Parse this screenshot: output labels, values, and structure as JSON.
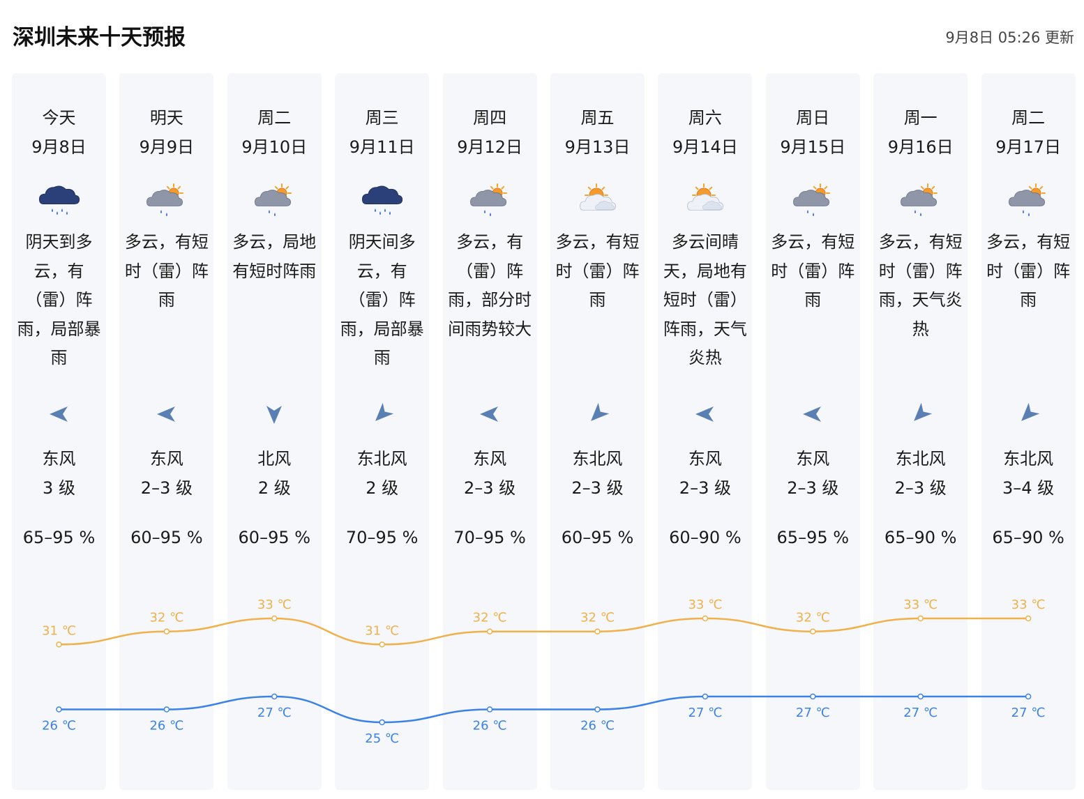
{
  "title": "深圳未来十天预报",
  "update_text": "9月8日 05:26 更新",
  "days": [
    {
      "day": "今天",
      "date": "9月8日",
      "icon": "rain-cloud-icon",
      "desc": "阴天到多云，有（雷）阵雨，局部暴雨",
      "wind_dir": "东风",
      "wind_level": "3 级",
      "humidity": "65–95 %",
      "high": "31 ℃",
      "low": "26 ℃",
      "high_v": 31,
      "low_v": 26,
      "arrow_deg": 180
    },
    {
      "day": "明天",
      "date": "9月9日",
      "icon": "partly-cloudy-rain-icon",
      "desc": "多云，有短时（雷）阵雨",
      "wind_dir": "东风",
      "wind_level": "2–3 级",
      "humidity": "60–95 %",
      "high": "32 ℃",
      "low": "26 ℃",
      "high_v": 32,
      "low_v": 26,
      "arrow_deg": 180
    },
    {
      "day": "周二",
      "date": "9月10日",
      "icon": "partly-cloudy-rain-icon",
      "desc": "多云，局地有短时阵雨",
      "wind_dir": "北风",
      "wind_level": "2 级",
      "humidity": "60–95 %",
      "high": "33 ℃",
      "low": "27 ℃",
      "high_v": 33,
      "low_v": 27,
      "arrow_deg": 90
    },
    {
      "day": "周三",
      "date": "9月11日",
      "icon": "rain-cloud-icon",
      "desc": "阴天间多云，有（雷）阵雨，局部暴雨",
      "wind_dir": "东北风",
      "wind_level": "2 级",
      "humidity": "70–95 %",
      "high": "31 ℃",
      "low": "25 ℃",
      "high_v": 31,
      "low_v": 25,
      "arrow_deg": 135
    },
    {
      "day": "周四",
      "date": "9月12日",
      "icon": "partly-cloudy-rain-icon",
      "desc": "多云，有（雷）阵雨，部分时间雨势较大",
      "wind_dir": "东风",
      "wind_level": "2–3 级",
      "humidity": "70–95 %",
      "high": "32 ℃",
      "low": "26 ℃",
      "high_v": 32,
      "low_v": 26,
      "arrow_deg": 180
    },
    {
      "day": "周五",
      "date": "9月13日",
      "icon": "partly-sunny-icon",
      "desc": "多云，有短时（雷）阵雨",
      "wind_dir": "东北风",
      "wind_level": "2–3 级",
      "humidity": "60–95 %",
      "high": "32 ℃",
      "low": "26 ℃",
      "high_v": 32,
      "low_v": 26,
      "arrow_deg": 135
    },
    {
      "day": "周六",
      "date": "9月14日",
      "icon": "partly-sunny-icon",
      "desc": "多云间晴天，局地有短时（雷）阵雨，天气炎热",
      "wind_dir": "东风",
      "wind_level": "2–3 级",
      "humidity": "60–90 %",
      "high": "33 ℃",
      "low": "27 ℃",
      "high_v": 33,
      "low_v": 27,
      "arrow_deg": 180
    },
    {
      "day": "周日",
      "date": "9月15日",
      "icon": "partly-cloudy-rain-icon",
      "desc": "多云，有短时（雷）阵雨",
      "wind_dir": "东风",
      "wind_level": "2–3 级",
      "humidity": "65–95 %",
      "high": "32 ℃",
      "low": "27 ℃",
      "high_v": 32,
      "low_v": 27,
      "arrow_deg": 180
    },
    {
      "day": "周一",
      "date": "9月16日",
      "icon": "partly-cloudy-rain-icon",
      "desc": "多云，有短时（雷）阵雨，天气炎热",
      "wind_dir": "东北风",
      "wind_level": "2–3 级",
      "humidity": "65–90 %",
      "high": "33 ℃",
      "low": "27 ℃",
      "high_v": 33,
      "low_v": 27,
      "arrow_deg": 135
    },
    {
      "day": "周二",
      "date": "9月17日",
      "icon": "partly-cloudy-rain-icon",
      "desc": "多云，有短时（雷）阵雨",
      "wind_dir": "东北风",
      "wind_level": "3–4 级",
      "humidity": "65–90 %",
      "high": "33 ℃",
      "low": "27 ℃",
      "high_v": 33,
      "low_v": 27,
      "arrow_deg": 135
    }
  ],
  "colors": {
    "high": "#f0b04a",
    "low": "#3b82e8",
    "column_bg": "#f6f7fb",
    "arrow": "#5a7fb3"
  }
}
